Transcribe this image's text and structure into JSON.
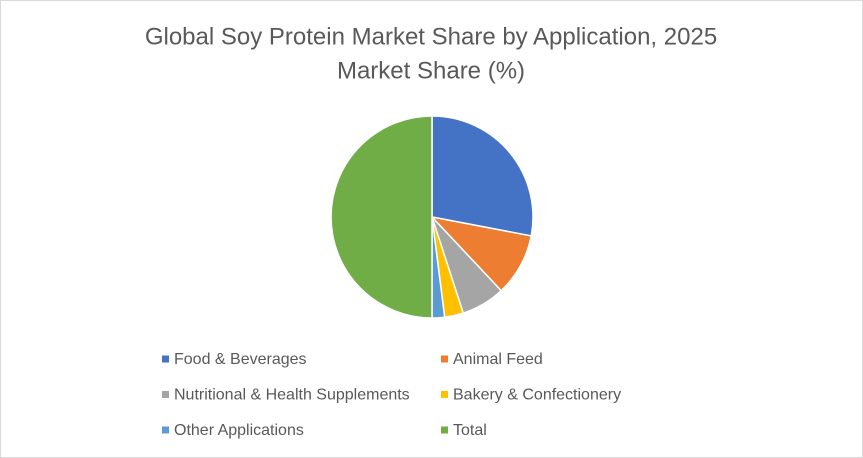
{
  "chart_data": {
    "type": "pie",
    "title": "Global Soy Protein Market Share by Application, 2025",
    "subtitle": "Market Share (%)",
    "categories": [
      "Food & Beverages",
      "Animal Feed",
      "Nutritional & Health Supplements",
      "Bakery & Confectionery",
      "Other Applications",
      "Total"
    ],
    "values": [
      28,
      10,
      7,
      3,
      2,
      50
    ],
    "colors": [
      "#4472c4",
      "#ed7d31",
      "#a5a5a5",
      "#ffc000",
      "#5b9bd5",
      "#70ad47"
    ],
    "legend": "bottom"
  }
}
